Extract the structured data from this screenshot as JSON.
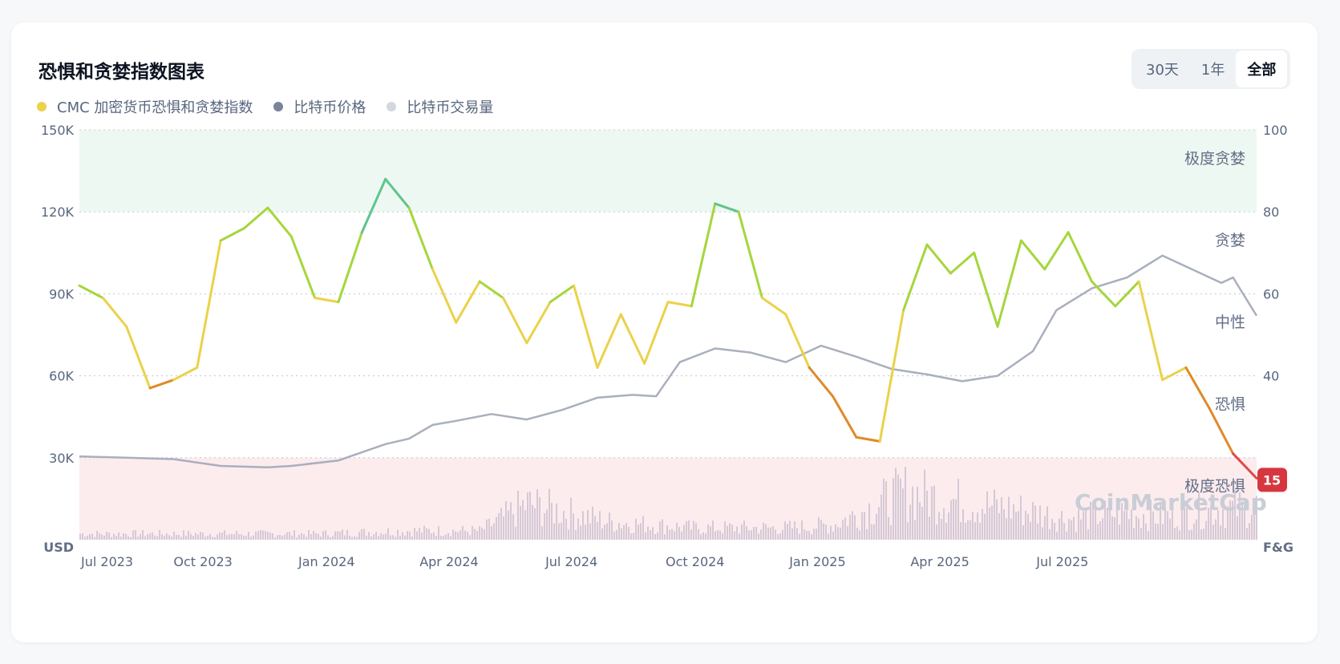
{
  "title": "恐惧和贪婪指数图表",
  "legend": [
    {
      "label": "CMC 加密货币恐惧和贪婪指数",
      "color": "#ead24a"
    },
    {
      "label": "比特币价格",
      "color": "#7b8399"
    },
    {
      "label": "比特币交易量",
      "color": "#d3d7de"
    }
  ],
  "range_options": [
    "30天",
    "1年",
    "全部"
  ],
  "selected_range": "全部",
  "watermark": "CoinMarketCap",
  "chart_data": {
    "type": "line",
    "left_axis": {
      "unit": "USD",
      "ticks": [
        "150K",
        "120K",
        "90K",
        "60K",
        "30K"
      ],
      "range": [
        0,
        150000
      ]
    },
    "right_axis": {
      "unit": "F&G",
      "ticks": [
        "100",
        "80",
        "60",
        "40"
      ],
      "range": [
        0,
        100
      ]
    },
    "x_ticks": [
      "Jul 2023",
      "Oct 2023",
      "Jan 2024",
      "Apr 2024",
      "Jul 2024",
      "Oct 2024",
      "Jan 2025",
      "Apr 2025",
      "Jul 2025"
    ],
    "zones": [
      {
        "label": "极度贪婪",
        "range": [
          80,
          100
        ],
        "color": "#eef8f2"
      },
      {
        "label": "贪婪",
        "range": [
          60,
          80
        ],
        "color": ""
      },
      {
        "label": "中性",
        "range": [
          40,
          60
        ],
        "color": ""
      },
      {
        "label": "恐惧",
        "range": [
          20,
          40
        ],
        "color": ""
      },
      {
        "label": "极度恐惧",
        "range": [
          0,
          20
        ],
        "color": "#fcecee"
      }
    ],
    "current_value": "15",
    "series": [
      {
        "name": "比特币价格",
        "axis": "left",
        "color": "#a9afbd",
        "x": [
          0,
          4,
          8,
          12,
          16,
          18,
          22,
          26,
          28,
          30,
          32,
          35,
          38,
          41,
          44,
          47,
          49,
          51,
          54,
          57,
          60,
          63,
          66,
          69,
          72,
          75,
          78,
          81,
          83,
          86,
          89,
          92,
          95,
          97,
          98,
          100
        ],
        "y": [
          30500,
          30000,
          29500,
          27000,
          26500,
          27000,
          29000,
          35000,
          37000,
          42000,
          43500,
          46000,
          44000,
          47500,
          52000,
          53000,
          52500,
          65000,
          70000,
          68500,
          65000,
          71000,
          67000,
          62500,
          60500,
          58000,
          60000,
          69000,
          84000,
          92000,
          96000,
          104000,
          98000,
          94000,
          96000,
          82000
        ]
      },
      {
        "name": "CMC 加密货币恐惧和贪婪指数",
        "axis": "right",
        "color": "#ead24a",
        "x": [
          0,
          2,
          4,
          6,
          8,
          10,
          12,
          14,
          16,
          18,
          20,
          22,
          24,
          26,
          28,
          30,
          32,
          34,
          36,
          38,
          40,
          42,
          44,
          46,
          48,
          50,
          52,
          54,
          56,
          58,
          60,
          62,
          64,
          66,
          68,
          70,
          72,
          74,
          76,
          78,
          80,
          82,
          84,
          86,
          88,
          90,
          92,
          94,
          96,
          98,
          100
        ],
        "y": [
          62,
          59,
          52,
          37,
          39,
          42,
          73,
          76,
          81,
          74,
          59,
          58,
          75,
          88,
          81,
          66,
          53,
          63,
          59,
          48,
          58,
          62,
          42,
          55,
          43,
          58,
          57,
          82,
          80,
          59,
          55,
          42,
          35,
          25,
          24,
          56,
          72,
          65,
          70,
          52,
          73,
          66,
          75,
          63,
          57,
          63,
          39,
          42,
          32,
          21,
          15
        ]
      },
      {
        "name": "比特币交易量",
        "axis": "volume",
        "color": "#d5c9d6",
        "x": [
          0,
          10,
          20,
          28,
          34,
          38,
          45,
          52,
          56,
          60,
          64,
          70,
          76,
          80,
          84,
          88,
          92,
          96,
          100
        ],
        "y": [
          2,
          2,
          2,
          3,
          3,
          12,
          6,
          4,
          4,
          4,
          5,
          16,
          12,
          10,
          7,
          9,
          8,
          10,
          11
        ]
      }
    ]
  }
}
